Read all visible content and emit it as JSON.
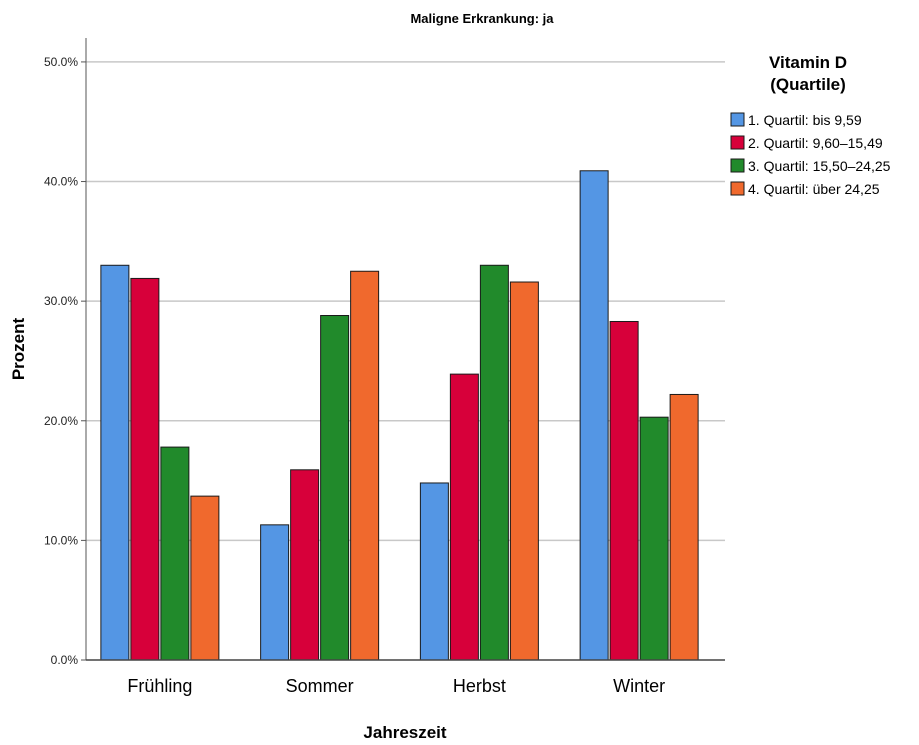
{
  "chart_data": {
    "type": "bar",
    "title": "Maligne Erkrankung: ja",
    "xlabel": "Jahreszeit",
    "ylabel": "Prozent",
    "categories": [
      "Frühling",
      "Sommer",
      "Herbst",
      "Winter"
    ],
    "ylim": [
      0,
      52
    ],
    "yticks": [
      0,
      10,
      20,
      30,
      40,
      50
    ],
    "ytick_labels": [
      "0.0%",
      "10.0%",
      "20.0%",
      "30.0%",
      "40.0%",
      "50.0%"
    ],
    "grid": true,
    "legend": {
      "title_line1": "Vitamin D",
      "title_line2": "(Quartile)",
      "position": "top-right"
    },
    "series": [
      {
        "name": "1. Quartil: bis 9,59",
        "color": "#5496e4",
        "values": [
          33.0,
          11.3,
          14.8,
          40.9
        ]
      },
      {
        "name": "2. Quartil: 9,60–15,49",
        "color": "#d7003a",
        "values": [
          31.9,
          15.9,
          23.9,
          28.3
        ]
      },
      {
        "name": "3. Quartil: 15,50–24,25",
        "color": "#218a2b",
        "values": [
          17.8,
          28.8,
          33.0,
          20.3
        ]
      },
      {
        "name": "4. Quartil: über 24,25",
        "color": "#f0692d",
        "values": [
          13.7,
          32.5,
          31.6,
          22.2
        ]
      }
    ]
  }
}
